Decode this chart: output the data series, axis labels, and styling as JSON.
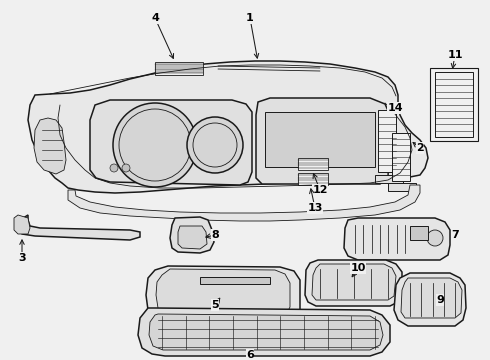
{
  "bg_color": "#f0f0f0",
  "line_color": "#1a1a1a",
  "label_color": "#000000",
  "lw_main": 1.1,
  "lw_thin": 0.6,
  "lw_detail": 0.45
}
